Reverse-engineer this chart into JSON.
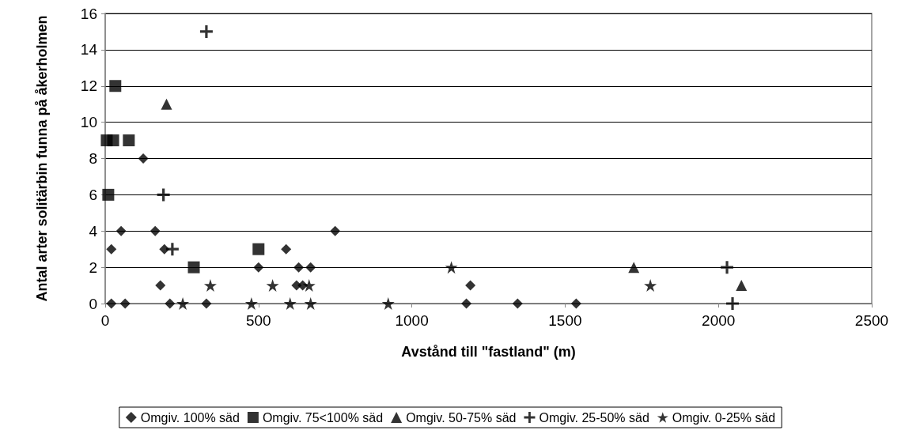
{
  "chart_data": {
    "type": "scatter",
    "xlabel": "Avstånd till \"fastland\" (m)",
    "ylabel": "Antal arter solitärbin funna på åkerholmen",
    "xlim": [
      0,
      2500
    ],
    "xticks": [
      0,
      500,
      1000,
      1500,
      2000,
      2500
    ],
    "ylim": [
      0,
      16
    ],
    "yticks": [
      0,
      2,
      4,
      6,
      8,
      10,
      12,
      14,
      16
    ],
    "grid": "y",
    "legend": "bottom",
    "series": [
      {
        "name": "Omgiv. 100% säd",
        "color": "#000000",
        "marker": "diamond",
        "x": [
          20,
          20,
          65,
          52,
          124,
          163,
          193,
          180,
          211,
          330,
          500,
          590,
          631,
          670,
          624,
          644,
          750,
          1191,
          1178,
          1345,
          1536
        ],
        "values": [
          3,
          0,
          0,
          4,
          8,
          4,
          3,
          1,
          0,
          0,
          2,
          3,
          2,
          2,
          1,
          1,
          4,
          1,
          0,
          0,
          0
        ]
      },
      {
        "name": "Omgiv. 75<100% säd",
        "color": "#000000",
        "marker": "square",
        "x": [
          33,
          5,
          26,
          77,
          10,
          500,
          289
        ],
        "values": [
          12,
          9,
          9,
          9,
          6,
          3,
          2
        ]
      },
      {
        "name": "Omgiv. 50-75% säd",
        "color": "#000000",
        "marker": "triangle",
        "x": [
          200,
          1724,
          2075
        ],
        "values": [
          11,
          2,
          1
        ]
      },
      {
        "name": "Omgiv. 25-50% säd",
        "color": "#000000",
        "marker": "cross",
        "x": [
          330,
          190,
          219,
          2028,
          2046
        ],
        "values": [
          15,
          6,
          3,
          2,
          0
        ]
      },
      {
        "name": "Omgiv. 0-25% säd",
        "color": "#000000",
        "marker": "star",
        "x": [
          253,
          343,
          477,
          546,
          603,
          665,
          670,
          923,
          1129,
          1778
        ],
        "values": [
          0,
          1,
          0,
          1,
          0,
          1,
          0,
          0,
          2,
          1
        ]
      }
    ]
  }
}
